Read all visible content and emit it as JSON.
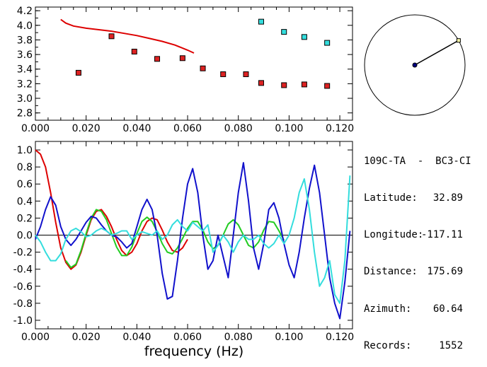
{
  "chart_data": [
    {
      "type": "scatter",
      "title": "",
      "xlabel": "",
      "ylabel": "",
      "xlim": [
        0.0,
        0.125
      ],
      "ylim": [
        2.7,
        4.25
      ],
      "x_ticks": [
        "0.000",
        "0.020",
        "0.040",
        "0.060",
        "0.080",
        "0.100",
        "0.120"
      ],
      "y_ticks": [
        "2.8",
        "3.0",
        "3.2",
        "3.4",
        "3.6",
        "3.8",
        "4.0",
        "4.2"
      ],
      "series": [
        {
          "name": "curve",
          "kind": "line",
          "color": "#dd0000",
          "x": [
            0.01,
            0.012,
            0.015,
            0.02,
            0.025,
            0.03,
            0.035,
            0.04,
            0.045,
            0.05,
            0.055,
            0.06,
            0.0625
          ],
          "y": [
            4.08,
            4.03,
            3.99,
            3.96,
            3.94,
            3.92,
            3.89,
            3.86,
            3.82,
            3.78,
            3.73,
            3.66,
            3.62
          ]
        },
        {
          "name": "red markers",
          "kind": "marker",
          "color": "#dd2222",
          "x": [
            0.017,
            0.03,
            0.039,
            0.048,
            0.058,
            0.066,
            0.074,
            0.083,
            0.089,
            0.098,
            0.106,
            0.115
          ],
          "y": [
            3.35,
            3.85,
            3.64,
            3.54,
            3.55,
            3.41,
            3.33,
            3.33,
            3.21,
            3.18,
            3.19,
            3.17
          ]
        },
        {
          "name": "cyan markers",
          "kind": "marker",
          "color": "#33dddd",
          "x": [
            0.089,
            0.098,
            0.106,
            0.115
          ],
          "y": [
            4.05,
            3.91,
            3.84,
            3.76
          ]
        }
      ]
    },
    {
      "type": "line",
      "title": "",
      "xlabel": "frequency (Hz)",
      "ylabel": "",
      "xlim": [
        0.0,
        0.125
      ],
      "ylim": [
        -1.1,
        1.1
      ],
      "x_ticks": [
        "0.000",
        "0.020",
        "0.040",
        "0.060",
        "0.080",
        "0.100",
        "0.120"
      ],
      "y_ticks": [
        "1.0",
        "0.8",
        "0.6",
        "0.4",
        "0.2",
        "0.0",
        "-0.2",
        "-0.4",
        "-0.6",
        "-0.8",
        "-1.0"
      ],
      "zero_line": true,
      "series": [
        {
          "name": "red",
          "color": "#dd0000",
          "x": [
            0.0,
            0.002,
            0.004,
            0.006,
            0.008,
            0.01,
            0.012,
            0.014,
            0.016,
            0.018,
            0.02,
            0.022,
            0.024,
            0.026,
            0.028,
            0.03,
            0.032,
            0.034,
            0.036,
            0.038,
            0.04,
            0.042,
            0.044,
            0.046,
            0.048,
            0.05,
            0.052,
            0.054,
            0.056,
            0.058,
            0.06
          ],
          "y": [
            1.0,
            0.95,
            0.8,
            0.5,
            0.15,
            -0.15,
            -0.32,
            -0.4,
            -0.35,
            -0.2,
            0.0,
            0.18,
            0.28,
            0.3,
            0.22,
            0.1,
            -0.05,
            -0.18,
            -0.24,
            -0.2,
            -0.1,
            0.05,
            0.16,
            0.2,
            0.18,
            0.06,
            -0.08,
            -0.18,
            -0.2,
            -0.15,
            -0.05
          ]
        },
        {
          "name": "green",
          "color": "#22cc22",
          "x": [
            0.012,
            0.014,
            0.016,
            0.018,
            0.02,
            0.022,
            0.024,
            0.026,
            0.028,
            0.03,
            0.032,
            0.034,
            0.036,
            0.038,
            0.04,
            0.042,
            0.044,
            0.046,
            0.048,
            0.05,
            0.052,
            0.054,
            0.056,
            0.058,
            0.06,
            0.062,
            0.064,
            0.066,
            0.068,
            0.07,
            0.072,
            0.074,
            0.076,
            0.078,
            0.08,
            0.082,
            0.084,
            0.086,
            0.088,
            0.09,
            0.092,
            0.094,
            0.096,
            0.098
          ],
          "y": [
            -0.3,
            -0.38,
            -0.34,
            -0.18,
            0.02,
            0.2,
            0.3,
            0.28,
            0.18,
            0.02,
            -0.14,
            -0.24,
            -0.24,
            -0.14,
            0.02,
            0.16,
            0.21,
            0.16,
            0.04,
            -0.1,
            -0.2,
            -0.22,
            -0.15,
            -0.04,
            0.08,
            0.16,
            0.16,
            0.06,
            -0.08,
            -0.16,
            -0.12,
            0.0,
            0.13,
            0.18,
            0.12,
            0.0,
            -0.12,
            -0.15,
            -0.08,
            0.06,
            0.16,
            0.15,
            0.05,
            -0.06
          ]
        },
        {
          "name": "blue",
          "color": "#1111cc",
          "x": [
            0.0,
            0.002,
            0.004,
            0.006,
            0.008,
            0.01,
            0.012,
            0.014,
            0.016,
            0.018,
            0.02,
            0.022,
            0.024,
            0.026,
            0.028,
            0.03,
            0.032,
            0.034,
            0.036,
            0.038,
            0.04,
            0.042,
            0.044,
            0.046,
            0.048,
            0.05,
            0.052,
            0.054,
            0.056,
            0.058,
            0.06,
            0.062,
            0.064,
            0.066,
            0.068,
            0.07,
            0.072,
            0.074,
            0.076,
            0.078,
            0.08,
            0.082,
            0.084,
            0.086,
            0.088,
            0.09,
            0.092,
            0.094,
            0.096,
            0.098,
            0.1,
            0.102,
            0.104,
            0.106,
            0.108,
            0.11,
            0.112,
            0.114,
            0.116,
            0.118,
            0.12,
            0.122,
            0.124
          ],
          "y": [
            -0.05,
            0.1,
            0.3,
            0.45,
            0.35,
            0.1,
            -0.05,
            -0.12,
            -0.05,
            0.05,
            0.15,
            0.22,
            0.2,
            0.12,
            0.05,
            0.0,
            -0.02,
            -0.08,
            -0.15,
            -0.1,
            0.1,
            0.3,
            0.42,
            0.3,
            0.0,
            -0.45,
            -0.75,
            -0.72,
            -0.3,
            0.2,
            0.6,
            0.78,
            0.5,
            0.0,
            -0.4,
            -0.3,
            0.0,
            -0.25,
            -0.5,
            0.0,
            0.5,
            0.85,
            0.4,
            -0.15,
            -0.4,
            -0.1,
            0.3,
            0.38,
            0.2,
            -0.1,
            -0.35,
            -0.5,
            -0.2,
            0.2,
            0.55,
            0.82,
            0.5,
            0.0,
            -0.5,
            -0.8,
            -0.98,
            -0.55,
            0.05
          ]
        },
        {
          "name": "cyan",
          "color": "#33dddd",
          "x": [
            0.0,
            0.002,
            0.004,
            0.006,
            0.008,
            0.01,
            0.012,
            0.014,
            0.016,
            0.018,
            0.02,
            0.022,
            0.024,
            0.026,
            0.028,
            0.03,
            0.032,
            0.034,
            0.036,
            0.038,
            0.04,
            0.042,
            0.044,
            0.046,
            0.048,
            0.05,
            0.052,
            0.054,
            0.056,
            0.058,
            0.06,
            0.062,
            0.064,
            0.066,
            0.068,
            0.07,
            0.072,
            0.074,
            0.076,
            0.078,
            0.08,
            0.082,
            0.084,
            0.086,
            0.088,
            0.09,
            0.092,
            0.094,
            0.096,
            0.098,
            0.1,
            0.102,
            0.104,
            0.106,
            0.108,
            0.11,
            0.112,
            0.114,
            0.116,
            0.118,
            0.12,
            0.122,
            0.124
          ],
          "y": [
            0.0,
            -0.08,
            -0.2,
            -0.3,
            -0.3,
            -0.22,
            -0.05,
            0.05,
            0.08,
            0.04,
            -0.02,
            0.0,
            0.05,
            0.08,
            0.05,
            0.0,
            0.02,
            0.05,
            0.05,
            -0.05,
            0.0,
            0.04,
            0.02,
            0.0,
            0.05,
            -0.05,
            0.0,
            0.12,
            0.18,
            0.1,
            0.05,
            0.15,
            0.1,
            0.05,
            0.12,
            -0.2,
            -0.12,
            0.0,
            -0.08,
            -0.2,
            -0.08,
            0.0,
            -0.05,
            -0.05,
            0.0,
            -0.1,
            -0.15,
            -0.1,
            0.0,
            -0.1,
            0.0,
            0.2,
            0.5,
            0.66,
            0.3,
            -0.2,
            -0.6,
            -0.5,
            -0.3,
            -0.7,
            -0.8,
            -0.3,
            0.7
          ]
        }
      ]
    }
  ],
  "polar_plot": {
    "azimuth_deg": 60.64,
    "needle_color": "#000000",
    "center_color": "#000080",
    "tip_color": "#ffffaa"
  },
  "station": {
    "name": "109C-TA  -  BC3-CI",
    "latitude_label": "Latitude:",
    "latitude": "32.89",
    "longitude_label": "Longitude:",
    "longitude": "-117.11",
    "distance_label": "Distance:",
    "distance": "175.69",
    "azimuth_label": "Azimuth:",
    "azimuth": "60.64",
    "records_label": "Records:",
    "records": "1552"
  }
}
